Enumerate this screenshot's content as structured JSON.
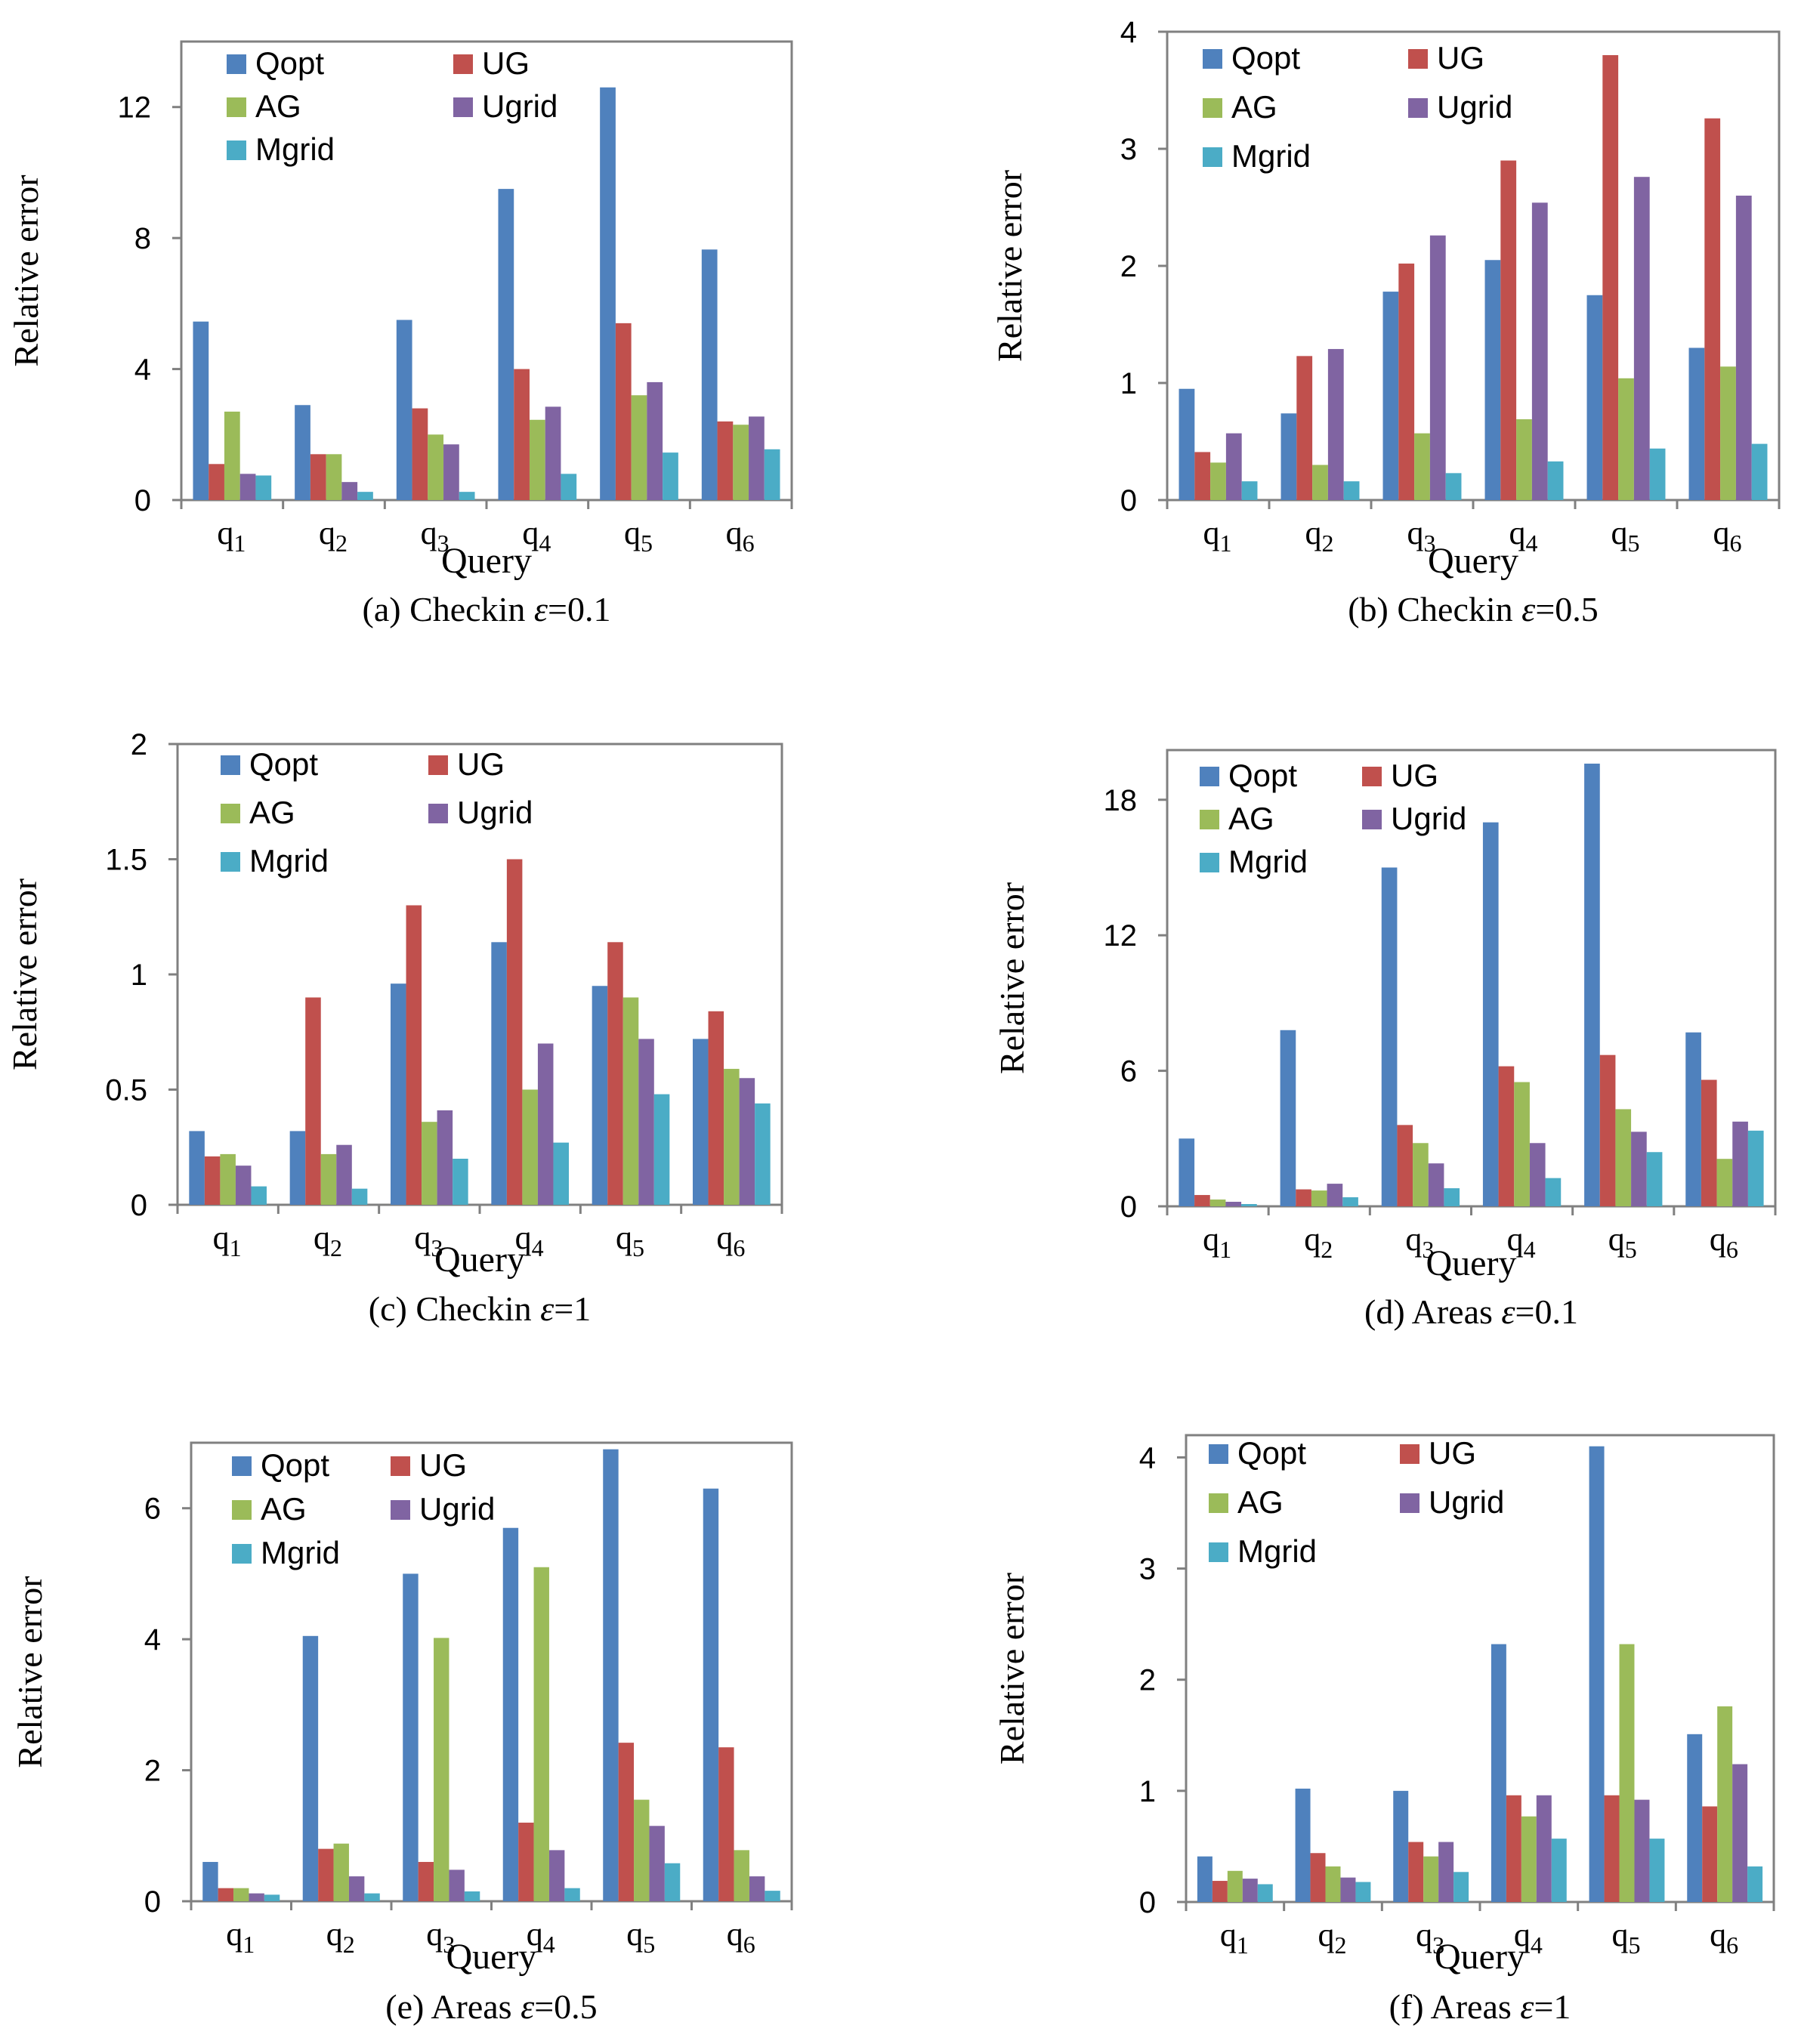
{
  "figure": {
    "background": "#ffffff",
    "frame_color": "#808080",
    "axis_color": "#808080",
    "text_color": "#000000"
  },
  "legend_labels": [
    "Qopt",
    "UG",
    "AG",
    "Ugrid",
    "Mgrid"
  ],
  "series_colors": [
    "#4f81bd",
    "#c0504d",
    "#9bbb59",
    "#8064a2",
    "#4bacc6"
  ],
  "category_base": [
    "q",
    "q",
    "q",
    "q",
    "q",
    "q"
  ],
  "category_sub": [
    "1",
    "2",
    "3",
    "4",
    "5",
    "6"
  ],
  "chart_data": [
    {
      "type": "bar",
      "panel_label": "(a) Checkin ",
      "epsilon_symbol": "ε",
      "epsilon_value": "=0.1",
      "xlabel": "Query",
      "ylabel": "Relative error",
      "categories": [
        "q1",
        "q2",
        "q3",
        "q4",
        "q5",
        "q6"
      ],
      "ylim": [
        0,
        14
      ],
      "yticks": [
        0,
        4,
        8,
        12
      ],
      "ytick_labels": [
        "0",
        "4",
        "8",
        "12"
      ],
      "series": [
        {
          "name": "Qopt",
          "values": [
            5.45,
            2.9,
            5.5,
            9.5,
            12.6,
            7.65
          ]
        },
        {
          "name": "UG",
          "values": [
            1.1,
            1.4,
            2.8,
            4.0,
            5.4,
            2.4
          ]
        },
        {
          "name": "AG",
          "values": [
            2.7,
            1.4,
            2.0,
            2.45,
            3.2,
            2.3
          ]
        },
        {
          "name": "Ugrid",
          "values": [
            0.8,
            0.55,
            1.7,
            2.85,
            3.6,
            2.55
          ]
        },
        {
          "name": "Mgrid",
          "values": [
            0.75,
            0.25,
            0.25,
            0.8,
            1.45,
            1.55
          ]
        }
      ]
    },
    {
      "type": "bar",
      "panel_label": "(b) Checkin ",
      "epsilon_symbol": "ε",
      "epsilon_value": "=0.5",
      "xlabel": "Query",
      "ylabel": "Relative error",
      "categories": [
        "q1",
        "q2",
        "q3",
        "q4",
        "q5",
        "q6"
      ],
      "ylim": [
        0,
        4
      ],
      "yticks": [
        0,
        1,
        2,
        3,
        4
      ],
      "ytick_labels": [
        "0",
        "1",
        "2",
        "3",
        "4"
      ],
      "series": [
        {
          "name": "Qopt",
          "values": [
            0.95,
            0.74,
            1.78,
            2.05,
            1.75,
            1.3
          ]
        },
        {
          "name": "UG",
          "values": [
            0.41,
            1.23,
            2.02,
            2.9,
            3.8,
            3.26
          ]
        },
        {
          "name": "AG",
          "values": [
            0.32,
            0.3,
            0.57,
            0.69,
            1.04,
            1.14
          ]
        },
        {
          "name": "Ugrid",
          "values": [
            0.57,
            1.29,
            2.26,
            2.54,
            2.76,
            2.6
          ]
        },
        {
          "name": "Mgrid",
          "values": [
            0.16,
            0.16,
            0.23,
            0.33,
            0.44,
            0.48
          ]
        }
      ]
    },
    {
      "type": "bar",
      "panel_label": "(c) Checkin ",
      "epsilon_symbol": "ε",
      "epsilon_value": "=1",
      "xlabel": "Query",
      "ylabel": "Relative error",
      "categories": [
        "q1",
        "q2",
        "q3",
        "q4",
        "q5",
        "q6"
      ],
      "ylim": [
        0,
        2
      ],
      "yticks": [
        0,
        0.5,
        1,
        1.5,
        2
      ],
      "ytick_labels": [
        "0",
        "0.5",
        "1",
        "1.5",
        "2"
      ],
      "series": [
        {
          "name": "Qopt",
          "values": [
            0.32,
            0.32,
            0.96,
            1.14,
            0.95,
            0.72
          ]
        },
        {
          "name": "UG",
          "values": [
            0.21,
            0.9,
            1.3,
            1.5,
            1.14,
            0.84
          ]
        },
        {
          "name": "AG",
          "values": [
            0.22,
            0.22,
            0.36,
            0.5,
            0.9,
            0.59
          ]
        },
        {
          "name": "Ugrid",
          "values": [
            0.17,
            0.26,
            0.41,
            0.7,
            0.72,
            0.55
          ]
        },
        {
          "name": "Mgrid",
          "values": [
            0.08,
            0.07,
            0.2,
            0.27,
            0.48,
            0.44
          ]
        }
      ]
    },
    {
      "type": "bar",
      "panel_label": "(d) Areas ",
      "epsilon_symbol": "ε",
      "epsilon_value": "=0.1",
      "xlabel": "Query",
      "ylabel": "Relative error",
      "categories": [
        "q1",
        "q2",
        "q3",
        "q4",
        "q5",
        "q6"
      ],
      "ylim": [
        0,
        20.2
      ],
      "yticks": [
        0,
        6,
        12,
        18
      ],
      "ytick_labels": [
        "0",
        "6",
        "12",
        "18"
      ],
      "series": [
        {
          "name": "Qopt",
          "values": [
            3.0,
            7.8,
            15.0,
            17.0,
            19.6,
            7.7
          ]
        },
        {
          "name": "UG",
          "values": [
            0.5,
            0.75,
            3.6,
            6.2,
            6.7,
            5.6
          ]
        },
        {
          "name": "AG",
          "values": [
            0.3,
            0.7,
            2.8,
            5.5,
            4.3,
            2.1
          ]
        },
        {
          "name": "Ugrid",
          "values": [
            0.2,
            1.0,
            1.9,
            2.8,
            3.3,
            3.75
          ]
        },
        {
          "name": "Mgrid",
          "values": [
            0.1,
            0.4,
            0.8,
            1.25,
            2.4,
            3.35
          ]
        }
      ]
    },
    {
      "type": "bar",
      "panel_label": "(e) Areas ",
      "epsilon_symbol": "ε",
      "epsilon_value": "=0.5",
      "xlabel": "Query",
      "ylabel": "Relative error",
      "categories": [
        "q1",
        "q2",
        "q3",
        "q4",
        "q5",
        "q6"
      ],
      "ylim": [
        0,
        7
      ],
      "yticks": [
        0,
        2,
        4,
        6
      ],
      "ytick_labels": [
        "0",
        "2",
        "4",
        "6"
      ],
      "series": [
        {
          "name": "Qopt",
          "values": [
            0.6,
            4.05,
            5.0,
            5.7,
            6.9,
            6.3
          ]
        },
        {
          "name": "UG",
          "values": [
            0.2,
            0.8,
            0.6,
            1.2,
            2.42,
            2.35
          ]
        },
        {
          "name": "AG",
          "values": [
            0.2,
            0.88,
            4.02,
            5.1,
            1.55,
            0.78
          ]
        },
        {
          "name": "Ugrid",
          "values": [
            0.12,
            0.38,
            0.48,
            0.78,
            1.15,
            0.38
          ]
        },
        {
          "name": "Mgrid",
          "values": [
            0.1,
            0.12,
            0.15,
            0.2,
            0.58,
            0.16
          ]
        }
      ]
    },
    {
      "type": "bar",
      "panel_label": "(f) Areas ",
      "epsilon_symbol": "ε",
      "epsilon_value": "=1",
      "xlabel": "Query",
      "ylabel": "Relative error",
      "categories": [
        "q1",
        "q2",
        "q3",
        "q4",
        "q5",
        "q6"
      ],
      "ylim": [
        0,
        4.2
      ],
      "yticks": [
        0,
        1,
        2,
        3,
        4
      ],
      "ytick_labels": [
        "0",
        "1",
        "2",
        "3",
        "4"
      ],
      "series": [
        {
          "name": "Qopt",
          "values": [
            0.41,
            1.02,
            1.0,
            2.32,
            4.1,
            1.51
          ]
        },
        {
          "name": "UG",
          "values": [
            0.19,
            0.44,
            0.54,
            0.96,
            0.96,
            0.86
          ]
        },
        {
          "name": "AG",
          "values": [
            0.28,
            0.32,
            0.41,
            0.77,
            2.32,
            1.76
          ]
        },
        {
          "name": "Ugrid",
          "values": [
            0.21,
            0.22,
            0.54,
            0.96,
            0.92,
            1.24
          ]
        },
        {
          "name": "Mgrid",
          "values": [
            0.16,
            0.18,
            0.27,
            0.57,
            0.57,
            0.32
          ]
        }
      ]
    }
  ]
}
